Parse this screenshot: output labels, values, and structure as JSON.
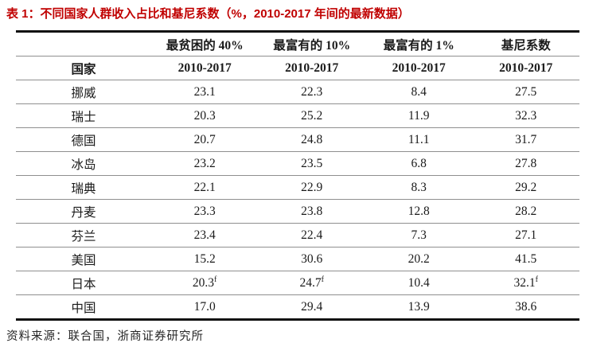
{
  "colors": {
    "title_red": "#c00000",
    "rule_dark": "#111111",
    "rule_light": "#8f8f8f",
    "text": "#1a1a1a",
    "source_text": "#262626"
  },
  "chart_data": {
    "type": "table",
    "title": "表 1：不同国家人群收入占比和基尼系数（%，2010-2017 年间的最新数据）",
    "country_header": "国家",
    "group_headers": [
      "最贫困的 40%",
      "最富有的 10%",
      "最富有的 1%",
      "基尼系数"
    ],
    "period_header": "2010-2017",
    "rows": [
      {
        "country": "挪威",
        "values": [
          "23.1",
          "22.3",
          "8.4",
          "27.5"
        ]
      },
      {
        "country": "瑞士",
        "values": [
          "20.3",
          "25.2",
          "11.9",
          "32.3"
        ]
      },
      {
        "country": "德国",
        "values": [
          "20.7",
          "24.8",
          "11.1",
          "31.7"
        ]
      },
      {
        "country": "冰岛",
        "values": [
          "23.2",
          "23.5",
          "6.8",
          "27.8"
        ]
      },
      {
        "country": "瑞典",
        "values": [
          "22.1",
          "22.9",
          "8.3",
          "29.2"
        ]
      },
      {
        "country": "丹麦",
        "values": [
          "23.3",
          "23.8",
          "12.8",
          "28.2"
        ]
      },
      {
        "country": "芬兰",
        "values": [
          "23.4",
          "22.4",
          "7.3",
          "27.1"
        ]
      },
      {
        "country": "美国",
        "values": [
          "15.2",
          "30.6",
          "20.2",
          "41.5"
        ]
      },
      {
        "country": "日本",
        "values": [
          "20.3^f",
          "24.7^f",
          "10.4",
          "32.1^f"
        ]
      },
      {
        "country": "中国",
        "values": [
          "17.0",
          "29.4",
          "13.9",
          "38.6"
        ]
      }
    ],
    "source": "资料来源：联合国，浙商证券研究所"
  }
}
